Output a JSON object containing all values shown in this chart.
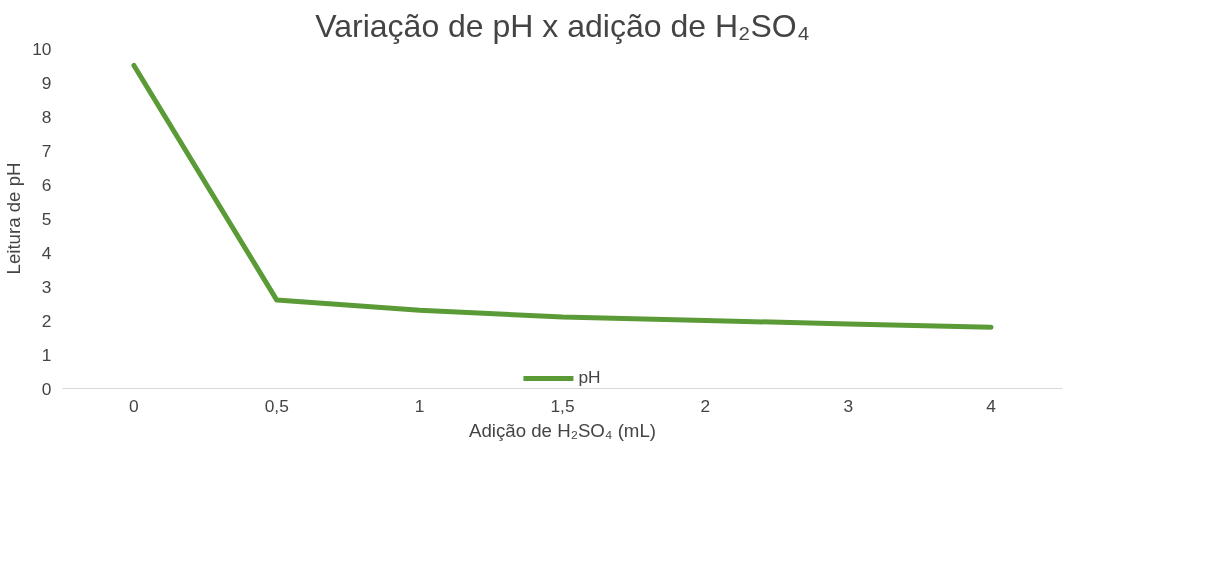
{
  "chart_data": {
    "type": "line",
    "title": "Variação de pH x adição de H₂SO₄",
    "xlabel": "Adição de H₂SO₄ (mL)",
    "ylabel": "Leitura de pH",
    "categories": [
      "0",
      "0,5",
      "1",
      "1,5",
      "2",
      "3",
      "4"
    ],
    "series": [
      {
        "name": "pH",
        "color": "#5b9b37",
        "values": [
          9.5,
          2.6,
          2.3,
          2.1,
          2.0,
          1.9,
          1.8
        ]
      }
    ],
    "ylim": [
      0,
      10
    ],
    "yticks": [
      0,
      1,
      2,
      3,
      4,
      5,
      6,
      7,
      8,
      9,
      10
    ],
    "legend": "bottom",
    "grid": false,
    "marker": "none",
    "line_style": "solid"
  }
}
